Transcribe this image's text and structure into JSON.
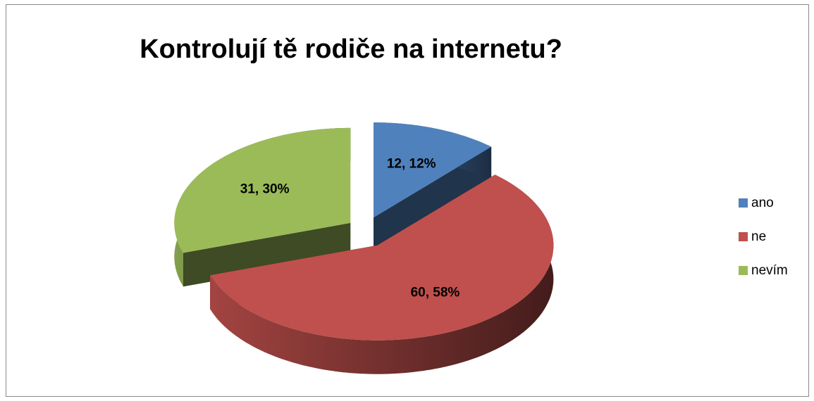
{
  "chart_data": {
    "type": "pie",
    "title": "Kontrolují tě rodiče na internetu?",
    "categories": [
      "ano",
      "ne",
      "nevím"
    ],
    "values": [
      12,
      60,
      31
    ],
    "value_labels": [
      "12, 12%",
      "60, 58%",
      "31, 30%"
    ],
    "colors": [
      "#4f81bd",
      "#c0504d",
      "#9bbb59"
    ],
    "legend": "right"
  }
}
